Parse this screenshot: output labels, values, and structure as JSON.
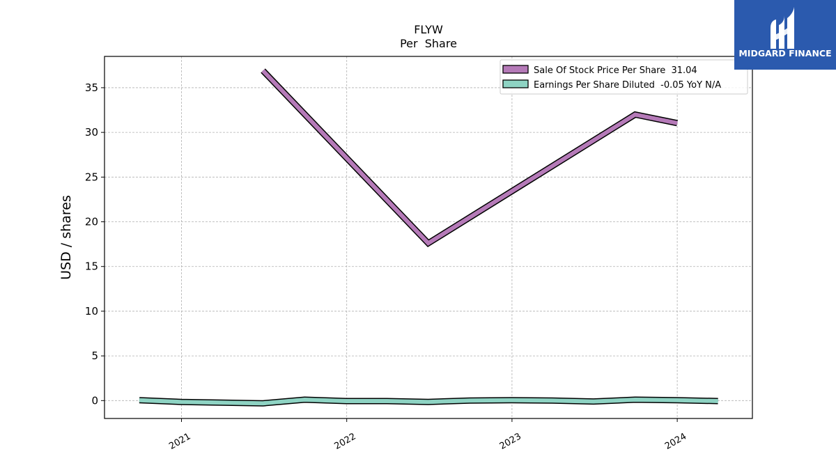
{
  "brand": {
    "name": "MIDGARD FINANCE",
    "logo_color": "#2b5aae"
  },
  "chart_data": {
    "type": "line",
    "title": "FLYW",
    "subtitle": "Per  Share",
    "ylabel": "USD / shares",
    "xlabel": "",
    "ylim": [
      -2,
      38.5
    ],
    "xlim": [
      "2020-07-15",
      "2024-06-15"
    ],
    "yticks": [
      0,
      5,
      10,
      15,
      20,
      25,
      30,
      35
    ],
    "xticks": [
      {
        "date": "2021-01-01",
        "label": "2021"
      },
      {
        "date": "2022-01-01",
        "label": "2022"
      },
      {
        "date": "2023-01-01",
        "label": "2023"
      },
      {
        "date": "2024-01-01",
        "label": "2024"
      }
    ],
    "grid": true,
    "legend_position": "top-right",
    "series": [
      {
        "name": "Sale Of Stock Price Per Share  31.04",
        "color": "#b57ab8",
        "points": [
          {
            "x": "2021-06-30",
            "y": 36.9
          },
          {
            "x": "2022-06-30",
            "y": 17.6
          },
          {
            "x": "2023-09-30",
            "y": 32.0
          },
          {
            "x": "2024-01-01",
            "y": 31.04
          }
        ]
      },
      {
        "name": "Earnings Per Share Diluted  -0.05 YoY N/A",
        "color": "#8ed3c3",
        "points": [
          {
            "x": "2020-09-30",
            "y": 0.05
          },
          {
            "x": "2020-12-31",
            "y": -0.15
          },
          {
            "x": "2021-06-30",
            "y": -0.3
          },
          {
            "x": "2021-09-30",
            "y": 0.1
          },
          {
            "x": "2021-12-31",
            "y": -0.05
          },
          {
            "x": "2022-03-31",
            "y": -0.05
          },
          {
            "x": "2022-06-30",
            "y": -0.15
          },
          {
            "x": "2022-09-30",
            "y": 0.0
          },
          {
            "x": "2022-12-31",
            "y": 0.05
          },
          {
            "x": "2023-03-31",
            "y": 0.0
          },
          {
            "x": "2023-06-30",
            "y": -0.1
          },
          {
            "x": "2023-09-30",
            "y": 0.1
          },
          {
            "x": "2023-12-31",
            "y": 0.05
          },
          {
            "x": "2024-03-31",
            "y": -0.05
          }
        ]
      }
    ]
  }
}
